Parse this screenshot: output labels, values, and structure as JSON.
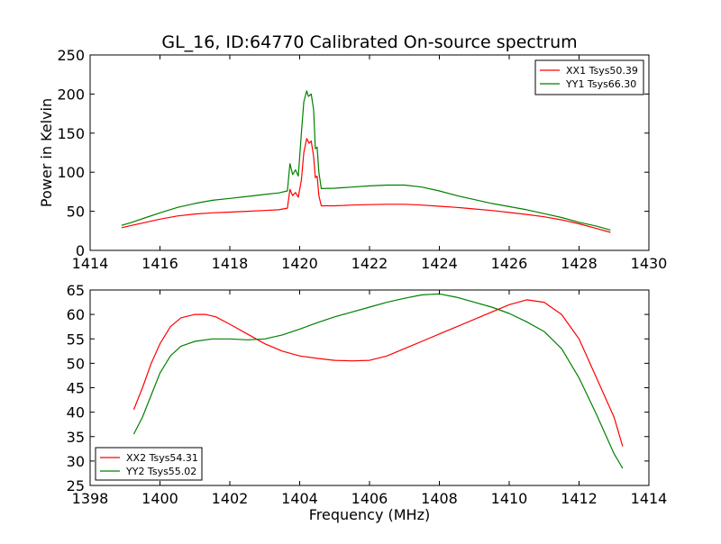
{
  "figure": {
    "title": "GL_16, ID:64770 Calibrated On-source spectrum"
  },
  "chart_data": [
    {
      "type": "line",
      "id": "top",
      "title": "GL_16, ID:64770 Calibrated On-source spectrum",
      "xlabel": "",
      "ylabel": "Power in Kelvin",
      "xlim": [
        1414,
        1430
      ],
      "ylim": [
        0,
        250
      ],
      "xticks": [
        1414,
        1416,
        1418,
        1420,
        1422,
        1424,
        1426,
        1428,
        1430
      ],
      "yticks": [
        0,
        50,
        100,
        150,
        200,
        250
      ],
      "grid": false,
      "legend_position": "top-right",
      "series": [
        {
          "name": "XX1 Tsys50.39",
          "color": "#ff0000",
          "points": [
            [
              1414.9,
              29
            ],
            [
              1415.2,
              32
            ],
            [
              1415.6,
              36
            ],
            [
              1416.0,
              40
            ],
            [
              1416.5,
              44
            ],
            [
              1417.0,
              46.5
            ],
            [
              1417.5,
              48
            ],
            [
              1418.0,
              49
            ],
            [
              1418.5,
              50
            ],
            [
              1419.0,
              51
            ],
            [
              1419.4,
              52
            ],
            [
              1419.65,
              54
            ],
            [
              1419.72,
              78
            ],
            [
              1419.8,
              70
            ],
            [
              1419.88,
              74
            ],
            [
              1419.96,
              68
            ],
            [
              1420.05,
              90
            ],
            [
              1420.12,
              125
            ],
            [
              1420.2,
              143
            ],
            [
              1420.27,
              137
            ],
            [
              1420.33,
              140
            ],
            [
              1420.4,
              120
            ],
            [
              1420.45,
              93
            ],
            [
              1420.5,
              95
            ],
            [
              1420.55,
              70
            ],
            [
              1420.62,
              57
            ],
            [
              1421.0,
              57
            ],
            [
              1421.5,
              58
            ],
            [
              1422.0,
              58.5
            ],
            [
              1422.5,
              59
            ],
            [
              1423.0,
              59
            ],
            [
              1423.5,
              58
            ],
            [
              1424.0,
              56.5
            ],
            [
              1424.5,
              55
            ],
            [
              1425.0,
              53
            ],
            [
              1425.5,
              51
            ],
            [
              1426.0,
              48.5
            ],
            [
              1426.5,
              46
            ],
            [
              1427.0,
              43
            ],
            [
              1427.5,
              39
            ],
            [
              1428.0,
              34
            ],
            [
              1428.5,
              28
            ],
            [
              1428.9,
              23
            ]
          ]
        },
        {
          "name": "YY1 Tsys66.30",
          "color": "#008000",
          "points": [
            [
              1414.9,
              32
            ],
            [
              1415.2,
              36
            ],
            [
              1415.6,
              42
            ],
            [
              1416.0,
              48
            ],
            [
              1416.5,
              55
            ],
            [
              1417.0,
              60
            ],
            [
              1417.5,
              64
            ],
            [
              1418.0,
              66.5
            ],
            [
              1418.5,
              69
            ],
            [
              1419.0,
              71.5
            ],
            [
              1419.4,
              73.5
            ],
            [
              1419.65,
              76
            ],
            [
              1419.72,
              111
            ],
            [
              1419.8,
              97
            ],
            [
              1419.88,
              103
            ],
            [
              1419.96,
              95
            ],
            [
              1420.05,
              150
            ],
            [
              1420.12,
              190
            ],
            [
              1420.2,
              204
            ],
            [
              1420.25,
              197
            ],
            [
              1420.33,
              200
            ],
            [
              1420.4,
              180
            ],
            [
              1420.45,
              130
            ],
            [
              1420.5,
              132
            ],
            [
              1420.55,
              100
            ],
            [
              1420.62,
              79
            ],
            [
              1421.0,
              79.5
            ],
            [
              1421.5,
              81
            ],
            [
              1422.0,
              82.5
            ],
            [
              1422.5,
              83.5
            ],
            [
              1423.0,
              83.5
            ],
            [
              1423.5,
              81
            ],
            [
              1424.0,
              76
            ],
            [
              1424.5,
              70
            ],
            [
              1425.0,
              65
            ],
            [
              1425.5,
              60
            ],
            [
              1426.0,
              56
            ],
            [
              1426.5,
              52
            ],
            [
              1427.0,
              47
            ],
            [
              1427.5,
              42
            ],
            [
              1428.0,
              36
            ],
            [
              1428.5,
              31
            ],
            [
              1428.9,
              26
            ]
          ]
        }
      ]
    },
    {
      "type": "line",
      "id": "bottom",
      "title": "",
      "xlabel": "Frequency (MHz)",
      "ylabel": "",
      "xlim": [
        1398,
        1414
      ],
      "ylim": [
        25,
        65
      ],
      "xticks": [
        1398,
        1400,
        1402,
        1404,
        1406,
        1408,
        1410,
        1412,
        1414
      ],
      "yticks": [
        25,
        30,
        35,
        40,
        45,
        50,
        55,
        60,
        65
      ],
      "grid": false,
      "legend_position": "bottom-left",
      "series": [
        {
          "name": "XX2 Tsys54.31",
          "color": "#ff0000",
          "points": [
            [
              1399.25,
              40.5
            ],
            [
              1399.5,
              45
            ],
            [
              1399.75,
              50
            ],
            [
              1400.0,
              54
            ],
            [
              1400.3,
              57.5
            ],
            [
              1400.6,
              59.3
            ],
            [
              1401.0,
              60
            ],
            [
              1401.3,
              60
            ],
            [
              1401.6,
              59.5
            ],
            [
              1402.0,
              58
            ],
            [
              1402.5,
              56
            ],
            [
              1403.0,
              54
            ],
            [
              1403.5,
              52.5
            ],
            [
              1404.0,
              51.5
            ],
            [
              1404.5,
              51
            ],
            [
              1405.0,
              50.6
            ],
            [
              1405.5,
              50.5
            ],
            [
              1406.0,
              50.6
            ],
            [
              1406.5,
              51.5
            ],
            [
              1407.0,
              53
            ],
            [
              1407.5,
              54.5
            ],
            [
              1408.0,
              56
            ],
            [
              1408.5,
              57.5
            ],
            [
              1409.0,
              59
            ],
            [
              1409.5,
              60.5
            ],
            [
              1410.0,
              62
            ],
            [
              1410.5,
              63
            ],
            [
              1411.0,
              62.5
            ],
            [
              1411.5,
              60
            ],
            [
              1412.0,
              55
            ],
            [
              1412.5,
              47
            ],
            [
              1413.0,
              39
            ],
            [
              1413.25,
              33
            ]
          ]
        },
        {
          "name": "YY2 Tsys55.02",
          "color": "#008000",
          "points": [
            [
              1399.25,
              35.5
            ],
            [
              1399.5,
              39
            ],
            [
              1399.75,
              43.5
            ],
            [
              1400.0,
              48
            ],
            [
              1400.3,
              51.5
            ],
            [
              1400.6,
              53.5
            ],
            [
              1401.0,
              54.5
            ],
            [
              1401.5,
              55
            ],
            [
              1402.0,
              55
            ],
            [
              1402.5,
              54.8
            ],
            [
              1403.0,
              55
            ],
            [
              1403.5,
              55.8
            ],
            [
              1404.0,
              57
            ],
            [
              1404.5,
              58.3
            ],
            [
              1405.0,
              59.5
            ],
            [
              1405.5,
              60.5
            ],
            [
              1406.0,
              61.5
            ],
            [
              1406.5,
              62.5
            ],
            [
              1407.0,
              63.3
            ],
            [
              1407.5,
              64
            ],
            [
              1408.0,
              64.2
            ],
            [
              1408.5,
              63.5
            ],
            [
              1409.0,
              62.5
            ],
            [
              1409.5,
              61.5
            ],
            [
              1410.0,
              60.2
            ],
            [
              1410.5,
              58.5
            ],
            [
              1411.0,
              56.5
            ],
            [
              1411.5,
              53
            ],
            [
              1412.0,
              47
            ],
            [
              1412.5,
              39.5
            ],
            [
              1413.0,
              31.5
            ],
            [
              1413.25,
              28.5
            ]
          ]
        }
      ]
    }
  ]
}
